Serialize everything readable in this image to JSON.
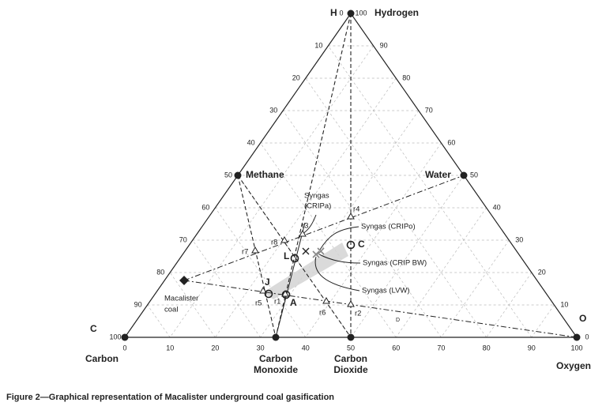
{
  "vertices": {
    "h_letter": "H",
    "hydrogen": "Hydrogen",
    "c_letter": "C",
    "carbon": "Carbon",
    "o_letter": "O",
    "oxygen": "Oxygen"
  },
  "species": {
    "methane": "Methane",
    "water": "Water",
    "carbon_monoxide": [
      "Carbon",
      "Monoxide"
    ],
    "carbon_dioxide": [
      "Carbon",
      "Dioxide"
    ]
  },
  "coal": [
    "Macalister",
    "coal"
  ],
  "axes": {
    "left_ticks": [
      0,
      10,
      20,
      30,
      40,
      50,
      60,
      70,
      80,
      90,
      100
    ],
    "right_ticks": [
      100,
      90,
      80,
      70,
      60,
      50,
      40,
      30,
      20,
      10,
      0
    ],
    "bottom_ticks": [
      0,
      10,
      20,
      30,
      40,
      50,
      60,
      70,
      80,
      90,
      100
    ]
  },
  "point_labels": [
    "r1",
    "r2",
    "r3",
    "r4",
    "r5",
    "r6",
    "r7",
    "r8",
    "J",
    "A",
    "L",
    "C",
    "D"
  ],
  "syngas": {
    "cripa": [
      "Syngas",
      "(CRIPa)"
    ],
    "cripo": "Syngas (CRIPo)",
    "crip_bw": "Syngas (CRIP BW)",
    "lvw": "Syngas (LVW)"
  },
  "caption": "Figure 2—Graphical representation of Macalister underground coal gasification"
}
